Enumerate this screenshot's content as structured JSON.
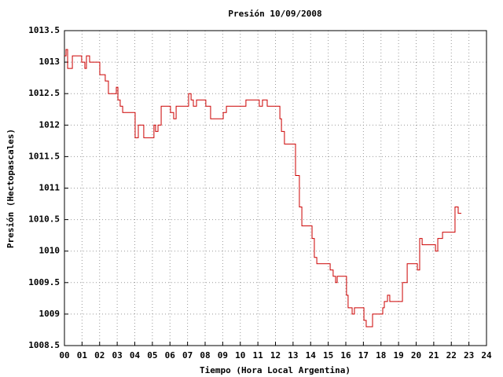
{
  "chart_data": {
    "type": "line",
    "step": true,
    "title": "Presión 10/09/2008",
    "xlabel": "Tiempo (Hora Local Argentina)",
    "ylabel": "Presión (Hectopascales)",
    "xlim": [
      0,
      24
    ],
    "xticks": [
      {
        "value": 0,
        "label": "00"
      },
      {
        "value": 1,
        "label": "01"
      },
      {
        "value": 2,
        "label": "02"
      },
      {
        "value": 3,
        "label": "03"
      },
      {
        "value": 4,
        "label": "04"
      },
      {
        "value": 5,
        "label": "05"
      },
      {
        "value": 6,
        "label": "06"
      },
      {
        "value": 7,
        "label": "07"
      },
      {
        "value": 8,
        "label": "08"
      },
      {
        "value": 9,
        "label": "09"
      },
      10,
      11,
      12,
      13,
      14,
      15,
      16,
      17,
      18,
      19,
      20,
      21,
      22,
      23,
      24
    ],
    "ylim": [
      1008.5,
      1013.5
    ],
    "yticks": [
      1008.5,
      1009,
      1009.5,
      1010,
      1010.5,
      1011,
      1011.5,
      1012,
      1012.5,
      1013,
      1013.5
    ],
    "grid": true,
    "series": [
      {
        "color": "#cc0000",
        "x": [
          0.0,
          0.09,
          0.18,
          0.45,
          0.98,
          1.16,
          1.25,
          1.43,
          2.01,
          2.32,
          2.5,
          2.95,
          3.04,
          3.17,
          3.31,
          3.4,
          4.02,
          4.2,
          4.51,
          5.09,
          5.18,
          5.32,
          5.5,
          6.03,
          6.21,
          6.35,
          7.06,
          7.2,
          7.33,
          7.51,
          8.04,
          8.31,
          9.03,
          9.21,
          10.32,
          11.08,
          11.26,
          11.53,
          12.25,
          12.34,
          12.51,
          13.14,
          13.36,
          13.5,
          14.08,
          14.21,
          14.35,
          15.11,
          15.28,
          15.42,
          15.51,
          16.04,
          16.13,
          16.36,
          16.49,
          17.03,
          17.16,
          17.52,
          18.1,
          18.19,
          18.37,
          18.5,
          19.22,
          19.49,
          20.07,
          20.2,
          20.34,
          21.1,
          21.23,
          21.5,
          22.21,
          22.39,
          22.57
        ],
        "values": [
          1013.1,
          1013.2,
          1012.9,
          1013.1,
          1013.0,
          1012.9,
          1013.1,
          1013.0,
          1012.8,
          1012.7,
          1012.5,
          1012.6,
          1012.4,
          1012.3,
          1012.2,
          1012.2,
          1011.8,
          1012.0,
          1011.8,
          1012.0,
          1011.9,
          1012.0,
          1012.3,
          1012.2,
          1012.1,
          1012.3,
          1012.5,
          1012.4,
          1012.3,
          1012.4,
          1012.3,
          1012.1,
          1012.2,
          1012.3,
          1012.4,
          1012.3,
          1012.4,
          1012.3,
          1012.1,
          1011.9,
          1011.7,
          1011.2,
          1010.7,
          1010.4,
          1010.2,
          1009.9,
          1009.8,
          1009.7,
          1009.6,
          1009.5,
          1009.6,
          1009.3,
          1009.1,
          1009.0,
          1009.1,
          1008.9,
          1008.8,
          1009.0,
          1009.1,
          1009.2,
          1009.3,
          1009.2,
          1009.5,
          1009.8,
          1009.7,
          1010.2,
          1010.1,
          1010.0,
          1010.2,
          1010.3,
          1010.7,
          1010.6,
          1010.6
        ]
      }
    ]
  }
}
